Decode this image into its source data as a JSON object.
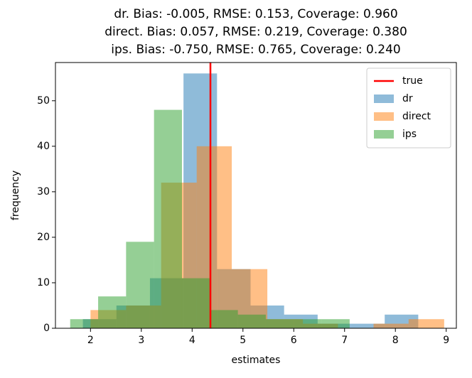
{
  "chart_data": {
    "type": "histogram",
    "title": [
      "dr. Bias: -0.005, RMSE: 0.153, Coverage: 0.960",
      "direct. Bias: 0.057, RMSE: 0.219, Coverage: 0.380",
      "ips. Bias: -0.750, RMSE: 0.765, Coverage: 0.240"
    ],
    "x_label": "estimates",
    "y_label": "frequency",
    "series": [
      {
        "name": "dr",
        "color": "#1f77b4",
        "bins": [
          1.85,
          2.51,
          3.17,
          3.83,
          4.49,
          5.15,
          5.81,
          6.47,
          7.13,
          7.79,
          8.45
        ],
        "values": [
          2,
          5,
          11,
          56,
          13,
          5,
          3,
          1,
          1,
          3
        ]
      },
      {
        "name": "direct",
        "color": "#ff7f0e",
        "bins": [
          2.0,
          2.7,
          3.39,
          4.09,
          4.78,
          5.48,
          6.18,
          6.87,
          7.57,
          8.26,
          8.96
        ],
        "values": [
          4,
          5,
          32,
          40,
          13,
          2,
          1,
          0,
          1,
          2
        ]
      },
      {
        "name": "ips",
        "color": "#2ca02c",
        "bins": [
          1.6,
          2.15,
          2.7,
          3.25,
          3.8,
          4.35,
          4.9,
          5.45,
          6.0,
          6.55,
          7.1
        ],
        "values": [
          2,
          7,
          19,
          48,
          11,
          4,
          3,
          2,
          2,
          2
        ]
      }
    ],
    "vlines": [
      {
        "name": "true",
        "x": 4.36,
        "color": "#ff0000"
      }
    ],
    "xlim": [
      1.31,
      9.2
    ],
    "ylim": [
      0,
      58.4
    ],
    "xticks": [
      2,
      3,
      4,
      5,
      6,
      7,
      8,
      9
    ],
    "yticks": [
      0,
      10,
      20,
      30,
      40,
      50
    ],
    "legend": "upper right"
  }
}
